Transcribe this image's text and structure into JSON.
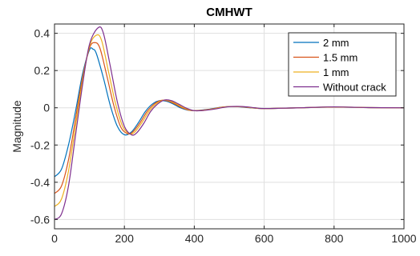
{
  "chart_data": {
    "type": "line",
    "title": "CMHWT",
    "xlabel": "",
    "ylabel": "Magnitude",
    "xlim": [
      0,
      1000
    ],
    "ylim": [
      -0.65,
      0.45
    ],
    "xticks": [
      0,
      200,
      400,
      600,
      800,
      1000
    ],
    "xtick_labels": [
      "0",
      "200",
      "400",
      "600",
      "800",
      "1000"
    ],
    "yticks": [
      -0.6,
      -0.4,
      -0.2,
      0,
      0.2,
      0.4
    ],
    "ytick_labels": [
      "-0.6",
      "-0.4",
      "-0.2",
      "0",
      "0.2",
      "0.4"
    ],
    "grid": true,
    "legend_position": "top-right",
    "series": [
      {
        "name": "2 mm",
        "color": "#0072BD",
        "x": [
          0,
          20,
          40,
          60,
          80,
          100,
          110,
          120,
          140,
          160,
          180,
          200,
          220,
          240,
          260,
          280,
          300,
          320,
          340,
          360,
          380,
          400,
          440,
          480,
          520,
          560,
          600,
          700,
          800,
          900,
          1000
        ],
        "y": [
          -0.37,
          -0.33,
          -0.2,
          -0.02,
          0.18,
          0.31,
          0.315,
          0.29,
          0.16,
          0.01,
          -0.1,
          -0.145,
          -0.13,
          -0.08,
          -0.02,
          0.02,
          0.038,
          0.035,
          0.02,
          0.0,
          -0.012,
          -0.015,
          -0.008,
          0.004,
          0.006,
          0.0,
          -0.004,
          0.0,
          0.004,
          0.001,
          0.0
        ]
      },
      {
        "name": "1.5 mm",
        "color": "#D95319",
        "x": [
          0,
          20,
          40,
          60,
          80,
          100,
          115,
          130,
          150,
          170,
          190,
          210,
          225,
          245,
          265,
          285,
          305,
          325,
          345,
          365,
          385,
          405,
          445,
          485,
          525,
          565,
          600,
          700,
          800,
          900,
          1000
        ],
        "y": [
          -0.46,
          -0.42,
          -0.28,
          -0.06,
          0.16,
          0.32,
          0.35,
          0.32,
          0.17,
          0.01,
          -0.105,
          -0.14,
          -0.128,
          -0.08,
          -0.02,
          0.02,
          0.04,
          0.036,
          0.02,
          0.0,
          -0.013,
          -0.015,
          -0.008,
          0.005,
          0.006,
          0.0,
          -0.004,
          0.0,
          0.004,
          0.001,
          0.0
        ]
      },
      {
        "name": "1 mm",
        "color": "#EDB120",
        "x": [
          0,
          20,
          40,
          60,
          80,
          100,
          120,
          135,
          155,
          175,
          195,
          215,
          230,
          250,
          270,
          290,
          310,
          330,
          350,
          370,
          390,
          410,
          450,
          490,
          530,
          570,
          600,
          700,
          800,
          900,
          1000
        ],
        "y": [
          -0.53,
          -0.49,
          -0.34,
          -0.1,
          0.14,
          0.33,
          0.39,
          0.36,
          0.19,
          0.02,
          -0.1,
          -0.14,
          -0.13,
          -0.08,
          -0.02,
          0.02,
          0.04,
          0.037,
          0.02,
          0.0,
          -0.013,
          -0.016,
          -0.008,
          0.005,
          0.006,
          0.0,
          -0.004,
          0.0,
          0.005,
          0.001,
          0.0
        ]
      },
      {
        "name": "Without crack",
        "color": "#7E2F8E",
        "x": [
          0,
          20,
          40,
          60,
          80,
          100,
          125,
          140,
          160,
          180,
          200,
          220,
          235,
          255,
          275,
          295,
          315,
          335,
          355,
          375,
          395,
          415,
          455,
          495,
          535,
          575,
          600,
          700,
          800,
          900,
          1000
        ],
        "y": [
          -0.6,
          -0.57,
          -0.42,
          -0.15,
          0.12,
          0.34,
          0.43,
          0.4,
          0.22,
          0.03,
          -0.1,
          -0.145,
          -0.135,
          -0.085,
          -0.02,
          0.02,
          0.042,
          0.038,
          0.02,
          0.0,
          -0.014,
          -0.016,
          -0.008,
          0.005,
          0.007,
          0.0,
          -0.004,
          0.0,
          0.005,
          0.001,
          0.0
        ]
      }
    ]
  }
}
